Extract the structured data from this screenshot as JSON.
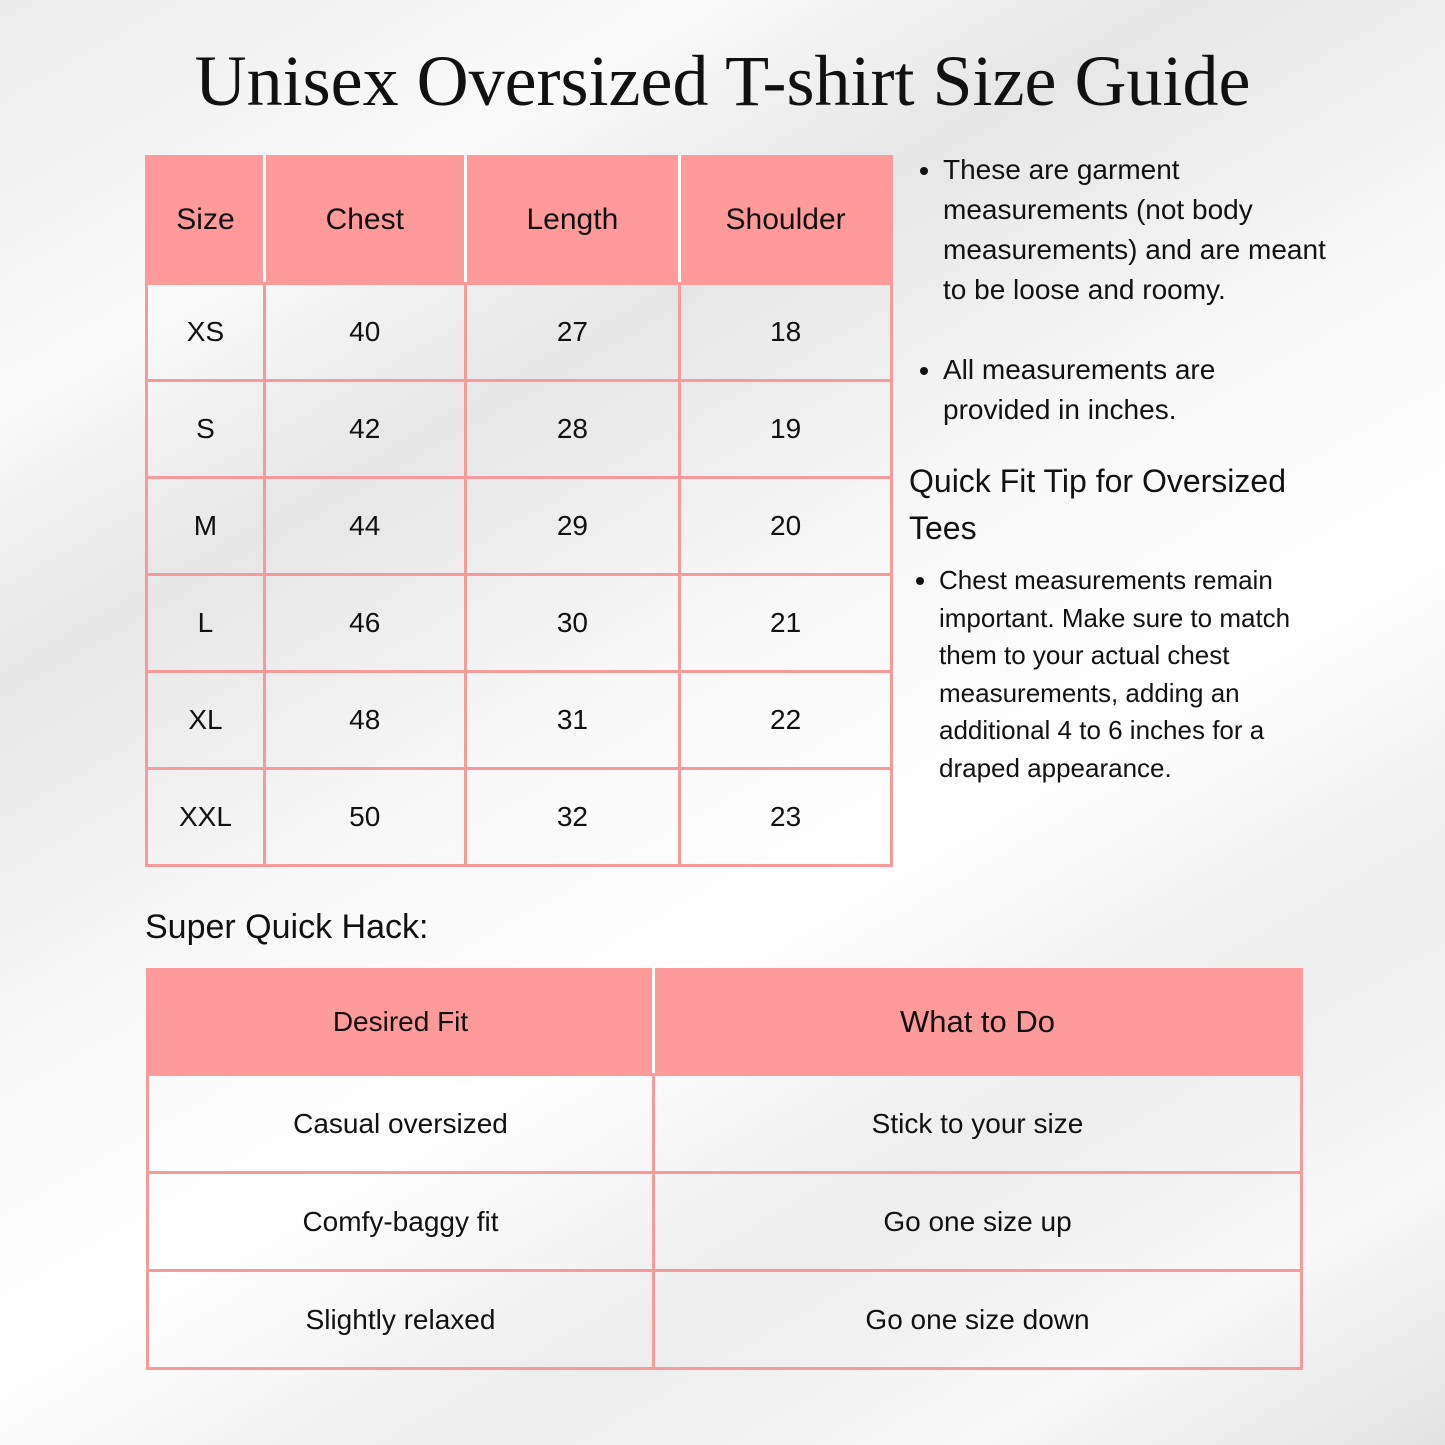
{
  "title": "Unisex Oversized T-shirt Size Guide",
  "size_table": {
    "headers": [
      "Size",
      "Chest",
      "Length",
      "Shoulder"
    ],
    "rows": [
      [
        "XS",
        "40",
        "27",
        "18"
      ],
      [
        "S",
        "42",
        "28",
        "19"
      ],
      [
        "M",
        "44",
        "29",
        "20"
      ],
      [
        "L",
        "46",
        "30",
        "21"
      ],
      [
        "XL",
        "48",
        "31",
        "22"
      ],
      [
        "XXL",
        "50",
        "32",
        "23"
      ]
    ]
  },
  "notes": {
    "bullets": [
      "These are garment measurements (not body measurements) and are meant to be loose and roomy.",
      "All measurements are provided in inches."
    ],
    "tip_heading": "Quick Fit Tip for Oversized Tees",
    "tip_bullets": [
      "Chest measurements remain important. Make sure to match them to your actual chest measurements, adding an additional 4 to 6 inches for a draped appearance."
    ]
  },
  "hack": {
    "title": "Super Quick Hack:",
    "headers": [
      "Desired Fit",
      "What to Do"
    ],
    "rows": [
      [
        "Casual oversized",
        "Stick to your size"
      ],
      [
        "Comfy-baggy fit",
        "Go one size up"
      ],
      [
        "Slightly relaxed",
        "Go one size down"
      ]
    ]
  },
  "colors": {
    "header": "#ff9a9a",
    "border": "#f79a9a"
  }
}
